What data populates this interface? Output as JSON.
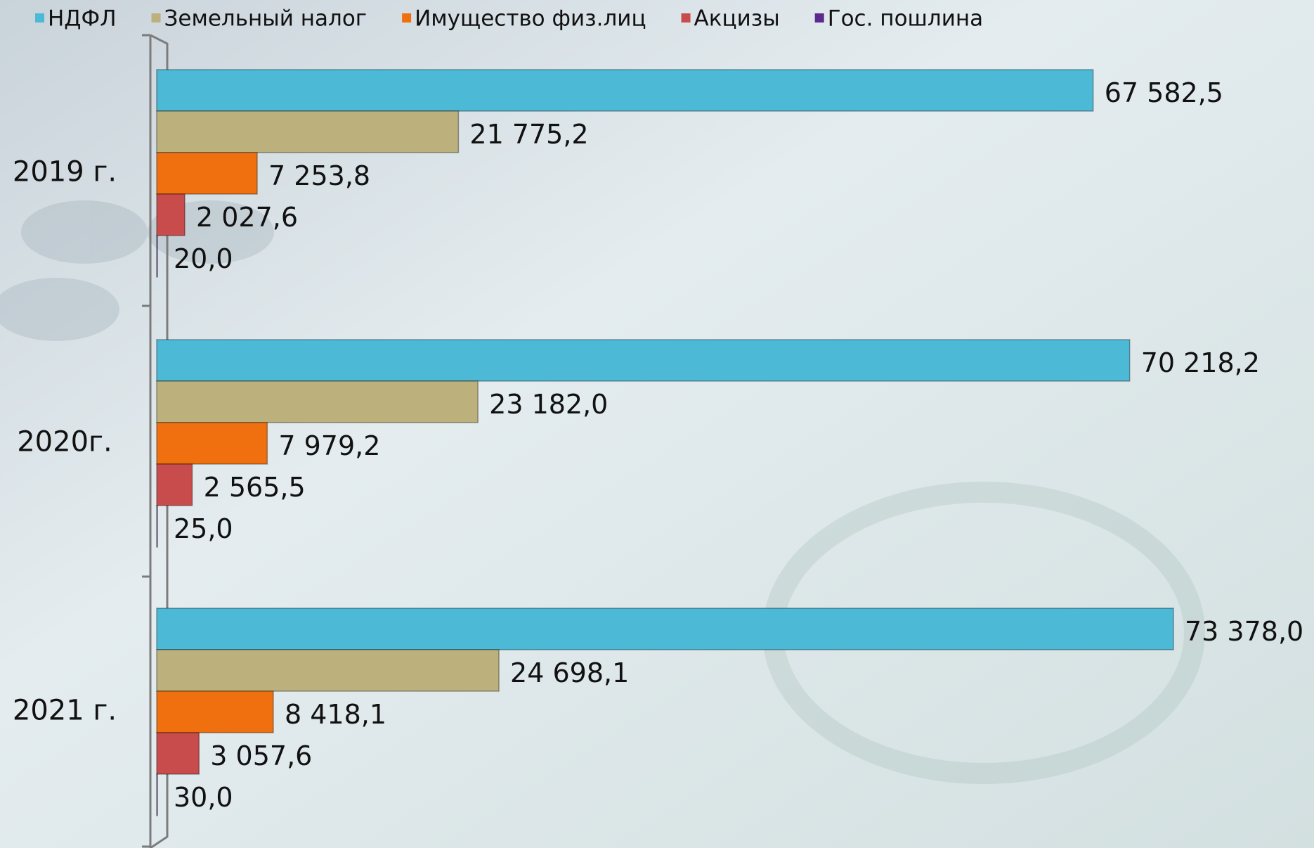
{
  "chart_data": {
    "type": "hbar",
    "categories": [
      "2019 г.",
      "2020г.",
      "2021 г."
    ],
    "series": [
      {
        "name": "НДФЛ",
        "color": "#4cb9d7",
        "values": [
          67582.5,
          70218.2,
          73378.0
        ],
        "value_labels": [
          "67 582,5",
          "70 218,2",
          "73 378,0"
        ]
      },
      {
        "name": "Земельный налог",
        "color": "#bcb07c",
        "values": [
          21775.2,
          23182.0,
          24698.1
        ],
        "value_labels": [
          "21 775,2",
          "23 182,0",
          "24 698,1"
        ]
      },
      {
        "name": "Имущество физ.лиц",
        "color": "#f0700f",
        "values": [
          7253.8,
          7979.2,
          8418.1
        ],
        "value_labels": [
          "7 253,8",
          "7 979,2",
          "8 418,1"
        ]
      },
      {
        "name": "Акцизы",
        "color": "#c94c4c",
        "values": [
          2027.6,
          2565.5,
          3057.6
        ],
        "value_labels": [
          "2 027,6",
          "2 565,5",
          "3 057,6"
        ]
      },
      {
        "name": "Гос. пошлина",
        "color": "#5b2a8c",
        "values": [
          20.0,
          25.0,
          30.0
        ],
        "value_labels": [
          "20,0",
          "25,0",
          "30,0"
        ]
      }
    ]
  }
}
